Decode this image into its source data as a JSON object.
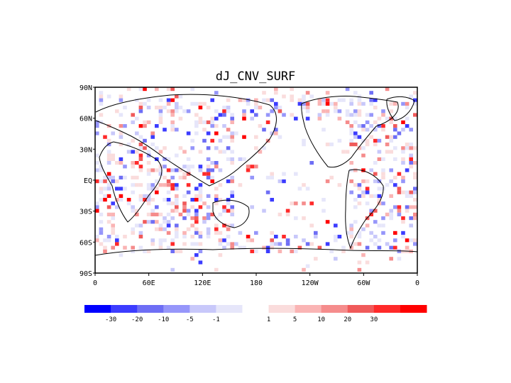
{
  "map": {
    "title": "dJ_CNV_SURF",
    "lat_ticks": [
      "90N",
      "60N",
      "30N",
      "EQ",
      "30S",
      "60S",
      "90S"
    ],
    "lon_ticks": [
      "0",
      "60E",
      "120E",
      "180",
      "120W",
      "60W",
      "0"
    ],
    "colorbar": {
      "labels": [
        "-30",
        "-20",
        "-10",
        "-5",
        "-1",
        "1",
        "5",
        "10",
        "20",
        "30"
      ],
      "colors": [
        "#0000ff",
        "#3c3cff",
        "#6e6ef5",
        "#9696fa",
        "#c8c8fa",
        "#e6e6fa",
        "#ffffff",
        "#fadcdc",
        "#fab4b4",
        "#f58c8c",
        "#f05a5a",
        "#ff2a2a",
        "#ff0000"
      ]
    }
  }
}
